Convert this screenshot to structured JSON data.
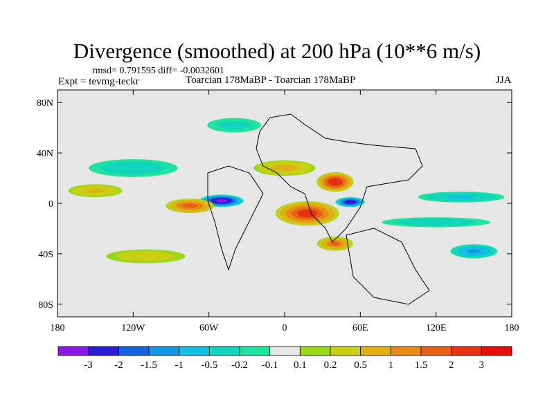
{
  "chart_data": {
    "type": "heatmap",
    "title": "Divergence (smoothed) at 200 hPa (10**6 m/s)",
    "stats": "rmsd= 0.791595 diff= -0.0032601",
    "experiment": "Expt = tevmg-teckr",
    "comparison": "Toarcian 178MaBP - Toarcian 178MaBP",
    "season": "JJA",
    "xlim": [
      -180,
      180
    ],
    "ylim": [
      -90,
      90
    ],
    "x_ticks": [
      -180,
      -120,
      -60,
      0,
      60,
      120,
      180
    ],
    "x_tick_labels": [
      "180",
      "120W",
      "60W",
      "0",
      "60E",
      "120E",
      "180"
    ],
    "y_ticks": [
      80,
      40,
      0,
      -40,
      -80
    ],
    "y_tick_labels": [
      "80N",
      "40N",
      "0",
      "40S",
      "80S"
    ],
    "colorbar": {
      "colors": [
        "#8b1ae6",
        "#2c1bd6",
        "#1463e0",
        "#1497e6",
        "#12bfe0",
        "#11d6bd",
        "#1ee39a",
        "#e6e6e6",
        "#9ad91a",
        "#c9cf14",
        "#dfb114",
        "#e68c12",
        "#e66112",
        "#e63012",
        "#e60d0d"
      ],
      "labels": [
        "-3",
        "-2",
        "-1.5",
        "-1",
        "-0.5",
        "-0.2",
        "-0.1",
        "0.1",
        "0.2",
        "0.5",
        "1",
        "1.5",
        "2",
        "3"
      ]
    },
    "features": [
      {
        "lon": -50,
        "lat": 2,
        "rx": 18,
        "ry": 5,
        "value": -3.2,
        "name": "south-america-convergence"
      },
      {
        "lon": 52,
        "lat": 1,
        "rx": 12,
        "ry": 4,
        "value": -2.8,
        "name": "africa-convergence"
      },
      {
        "lon": -75,
        "lat": -2,
        "rx": 20,
        "ry": 6,
        "value": 1.9,
        "name": "pacific-divergence"
      },
      {
        "lon": 18,
        "lat": -8,
        "rx": 26,
        "ry": 10,
        "value": 2.5,
        "name": "tethys-divergence"
      },
      {
        "lon": 40,
        "lat": 17,
        "rx": 15,
        "ry": 8,
        "value": 2.8,
        "name": "arabia-divergence"
      },
      {
        "lon": 40,
        "lat": -32,
        "rx": 15,
        "ry": 6,
        "value": 1.6,
        "name": "southern-africa-divergence"
      },
      {
        "lon": 0,
        "lat": 28,
        "rx": 28,
        "ry": 7,
        "value": 0.7,
        "name": "north-tethys-band"
      },
      {
        "lon": 120,
        "lat": -15,
        "rx": 55,
        "ry": 5,
        "value": -0.4,
        "name": "south-ocean-band"
      },
      {
        "lon": 140,
        "lat": 5,
        "rx": 40,
        "ry": 5,
        "value": -0.6,
        "name": "east-equatorial-band"
      },
      {
        "lon": -120,
        "lat": 28,
        "rx": 45,
        "ry": 9,
        "value": -0.4,
        "name": "north-pacific-band"
      },
      {
        "lon": -40,
        "lat": 62,
        "rx": 30,
        "ry": 8,
        "value": -0.3,
        "name": "arctic-band"
      },
      {
        "lon": -110,
        "lat": -42,
        "rx": 40,
        "ry": 7,
        "value": 0.4,
        "name": "south-pacific-band"
      },
      {
        "lon": 150,
        "lat": -38,
        "rx": 20,
        "ry": 6,
        "value": -1.2,
        "name": "southwest-pacific-convergence"
      },
      {
        "lon": -150,
        "lat": 10,
        "rx": 25,
        "ry": 6,
        "value": 0.6,
        "name": "central-pacific-divergence"
      }
    ]
  }
}
